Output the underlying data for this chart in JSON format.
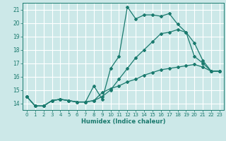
{
  "xlabel": "Humidex (Indice chaleur)",
  "background_color": "#cce8e8",
  "grid_color": "#b0d0d0",
  "line_color": "#1a7a6e",
  "xlim": [
    -0.5,
    23.5
  ],
  "ylim": [
    13.5,
    21.5
  ],
  "yticks": [
    14,
    15,
    16,
    17,
    18,
    19,
    20,
    21
  ],
  "xticks": [
    0,
    1,
    2,
    3,
    4,
    5,
    6,
    7,
    8,
    9,
    10,
    11,
    12,
    13,
    14,
    15,
    16,
    17,
    18,
    19,
    20,
    21,
    22,
    23
  ],
  "series": [
    [
      14.5,
      13.8,
      13.8,
      14.2,
      14.3,
      14.2,
      14.1,
      14.1,
      15.3,
      14.3,
      16.6,
      17.5,
      21.2,
      20.3,
      20.6,
      20.6,
      20.5,
      20.7,
      19.9,
      19.3,
      17.5,
      17.0,
      16.4,
      16.4
    ],
    [
      14.5,
      13.8,
      13.8,
      14.2,
      14.3,
      14.2,
      14.1,
      14.1,
      14.2,
      14.8,
      15.1,
      15.3,
      15.6,
      15.8,
      16.1,
      16.3,
      16.5,
      16.6,
      16.7,
      16.8,
      16.9,
      16.7,
      16.4,
      16.4
    ],
    [
      14.5,
      13.8,
      13.8,
      14.2,
      14.3,
      14.2,
      14.1,
      14.1,
      14.2,
      14.5,
      15.0,
      15.8,
      16.6,
      17.4,
      18.0,
      18.6,
      19.2,
      19.3,
      19.5,
      19.3,
      18.5,
      17.2,
      16.4,
      16.4
    ]
  ]
}
